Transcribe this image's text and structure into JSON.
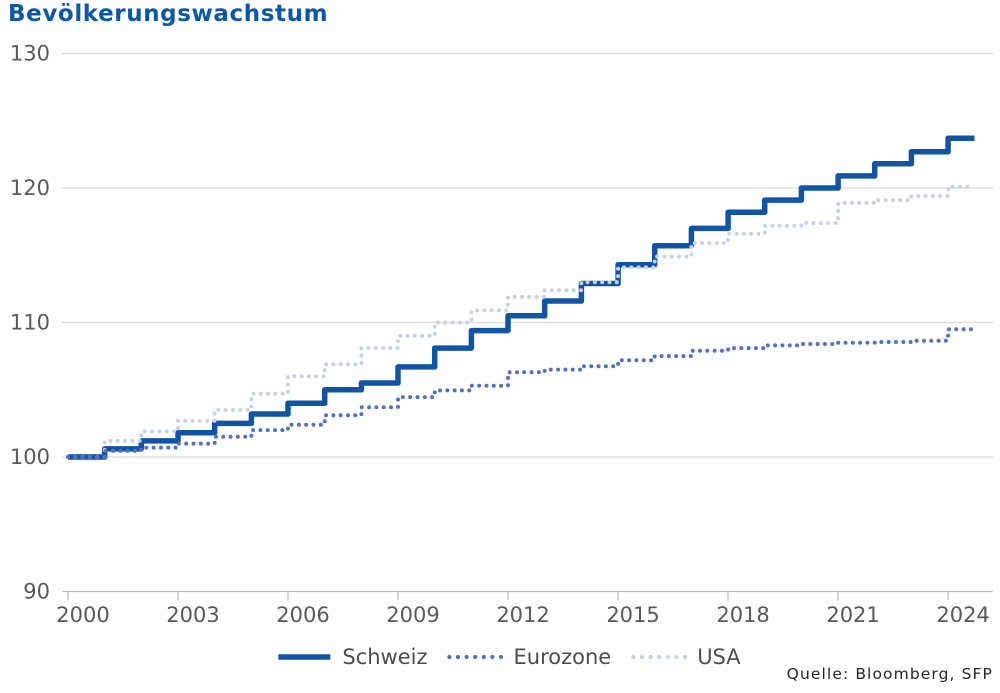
{
  "title": "Bevölkerungswachstum",
  "source": "Quelle: Bloomberg, SFP",
  "colors": {
    "title": "#0b57a8",
    "axis_text": "#595959",
    "legend_text": "#4d4d4d",
    "gridline": "#d9d9d9",
    "axis_line": "#bfbfbf",
    "schweiz": "#1154a3",
    "eurozone": "#5271c3",
    "usa": "#c9d0ea"
  },
  "chart_data": {
    "type": "line",
    "step": true,
    "title": "Bevölkerungswachstum",
    "xlabel": "",
    "ylabel": "",
    "xlim": [
      2000,
      2025.25
    ],
    "ylim": [
      90,
      130
    ],
    "x_ticks": [
      2000,
      2003,
      2006,
      2009,
      2012,
      2015,
      2018,
      2021,
      2024
    ],
    "y_ticks": [
      90,
      100,
      110,
      120,
      130
    ],
    "grid": "horizontal",
    "legend_position": "bottom",
    "x": [
      2000,
      2001,
      2002,
      2003,
      2004,
      2005,
      2006,
      2007,
      2008,
      2009,
      2010,
      2011,
      2012,
      2013,
      2014,
      2015,
      2016,
      2017,
      2018,
      2019,
      2020,
      2021,
      2022,
      2023,
      2024
    ],
    "series": [
      {
        "name": "Schweiz",
        "style": "solid",
        "color": "#1154a3",
        "values": [
          100.0,
          100.6,
          101.2,
          101.8,
          102.5,
          103.2,
          104.0,
          105.0,
          105.5,
          106.7,
          108.1,
          109.4,
          110.5,
          111.6,
          112.9,
          114.3,
          115.7,
          117.0,
          118.2,
          119.1,
          120.0,
          120.9,
          121.8,
          122.7,
          123.7
        ]
      },
      {
        "name": "Eurozone",
        "style": "dotted",
        "color": "#5271c3",
        "values": [
          100.0,
          100.45,
          100.7,
          101.0,
          101.5,
          102.0,
          102.4,
          103.1,
          103.7,
          104.45,
          104.95,
          105.3,
          106.3,
          106.5,
          106.75,
          107.2,
          107.5,
          107.9,
          108.1,
          108.3,
          108.4,
          108.5,
          108.55,
          108.65,
          109.5
        ]
      },
      {
        "name": "USA",
        "style": "dotted",
        "color": "#c9d0ea",
        "values": [
          100.0,
          101.2,
          101.9,
          102.7,
          103.5,
          104.7,
          106.0,
          106.9,
          108.1,
          109.0,
          110.0,
          110.9,
          111.9,
          112.4,
          113.0,
          114.1,
          114.9,
          115.9,
          116.6,
          117.2,
          117.4,
          118.9,
          119.1,
          119.4,
          120.1
        ]
      }
    ]
  }
}
